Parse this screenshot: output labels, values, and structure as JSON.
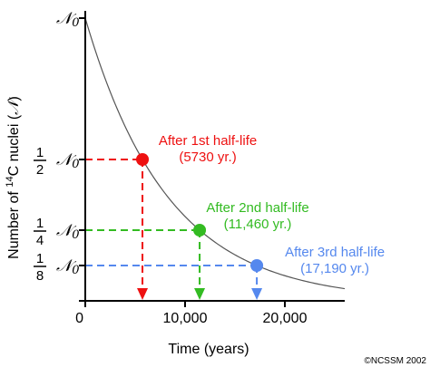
{
  "chart_data": {
    "type": "line",
    "title": "",
    "xlabel": "Time (years)",
    "ylabel_prefix": "Number of ",
    "ylabel_sup": "14",
    "ylabel_suffix": "C nuclei (",
    "ylabel_symbol": "𝒩",
    "ylabel_close": ")",
    "xlim": [
      0,
      26000
    ],
    "ylim": [
      0,
      1
    ],
    "x_ticks": [
      {
        "value": 0,
        "label": "0"
      },
      {
        "value": 10000,
        "label": "10,000"
      },
      {
        "value": 20000,
        "label": "20,000"
      }
    ],
    "y_ticks": [
      {
        "value": 1,
        "frac_num": "",
        "frac_den": "",
        "symbol": "𝒩0",
        "symbol_main": "𝒩",
        "symbol_sub": "0"
      },
      {
        "value": 0.5,
        "frac_num": "1",
        "frac_den": "2",
        "symbol_main": "𝒩",
        "symbol_sub": "0"
      },
      {
        "value": 0.25,
        "frac_num": "1",
        "frac_den": "4",
        "symbol_main": "𝒩",
        "symbol_sub": "0"
      },
      {
        "value": 0.125,
        "frac_num": "1",
        "frac_den": "8",
        "symbol_main": "𝒩",
        "symbol_sub": "0"
      }
    ],
    "half_life": 5730,
    "curve_color": "#555555",
    "points": [
      {
        "x": 5730,
        "y": 0.5,
        "label1": "After 1st half-life",
        "label2": "(5730 yr.)",
        "color": "#ee1111"
      },
      {
        "x": 11460,
        "y": 0.25,
        "label1": "After 2nd half-life",
        "label2": "(11,460 yr.)",
        "color": "#33bb22"
      },
      {
        "x": 17190,
        "y": 0.125,
        "label1": "After 3rd half-life",
        "label2": "(17,190 yr.)",
        "color": "#5588ee"
      }
    ],
    "credit": "©NCSSM 2002"
  }
}
